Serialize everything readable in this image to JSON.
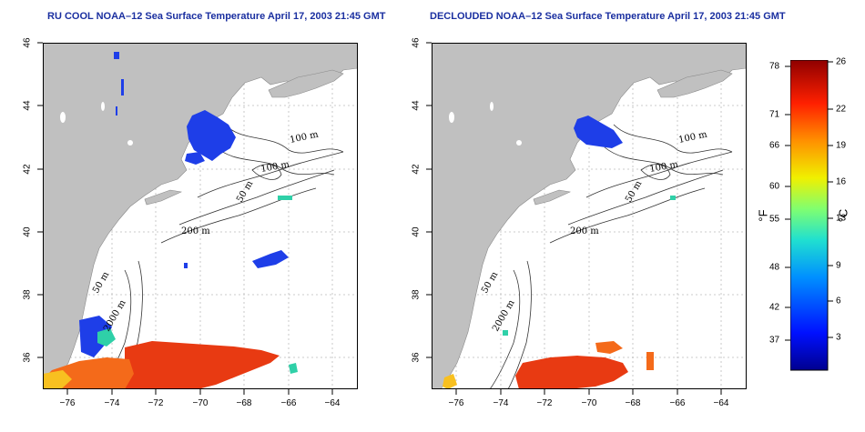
{
  "panels": [
    {
      "title": "RU COOL NOAA–12 Sea Surface Temperature April 17, 2003 21:45 GMT",
      "contour_labels": [
        "100 m",
        "100 m",
        "50 m",
        "200 m",
        "50 m",
        "2000 m"
      ]
    },
    {
      "title": "DECLOUDED NOAA–12 Sea Surface Temperature April 17, 2003 21:45 GMT",
      "contour_labels": [
        "100 m",
        "100 m",
        "50 m",
        "200 m",
        "50 m",
        "2000 m"
      ]
    }
  ],
  "axes": {
    "lat_ticks": [
      "46",
      "44",
      "42",
      "40",
      "38",
      "36"
    ],
    "lon_ticks": [
      "−76",
      "−74",
      "−72",
      "−70",
      "−68",
      "−66",
      "−64"
    ],
    "lat_range": [
      35,
      46
    ],
    "lon_range": [
      -77,
      -63
    ]
  },
  "colorbar": {
    "f_labels": [
      "78",
      "71",
      "66",
      "60",
      "55",
      "48",
      "42",
      "37"
    ],
    "c_labels": [
      "26",
      "22",
      "19",
      "16",
      "13",
      "9",
      "6",
      "3"
    ],
    "f_unit": "°F",
    "c_unit": "°C"
  },
  "colors": {
    "land": "#c0c0c0",
    "cold": "#1e3ee8",
    "warm": "#e83a12",
    "title": "#1a2fa0"
  }
}
